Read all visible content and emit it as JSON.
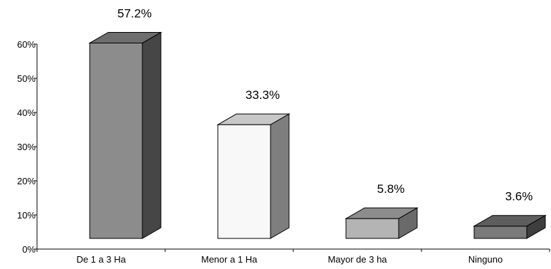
{
  "chart_data": {
    "type": "bar",
    "style": "3d-columns",
    "categories": [
      "De 1 a 3 Ha",
      "Menor a 1 Ha",
      "Mayor de 3 ha",
      "Ninguno"
    ],
    "values": [
      57.2,
      33.3,
      5.8,
      3.6
    ],
    "data_labels": [
      "57.2%",
      "33.3%",
      "5.8%",
      "3.6%"
    ],
    "ylim": [
      0,
      60
    ],
    "yticks": [
      0,
      10,
      20,
      30,
      40,
      50,
      60
    ],
    "ytick_labels": [
      "0%",
      "10%",
      "20%",
      "30%",
      "40%",
      "50%",
      "60%"
    ],
    "title": "",
    "xlabel": "",
    "ylabel": "",
    "grid": false,
    "legend": false,
    "colors": {
      "front": [
        "#8c8c8c",
        "#f8f8f8",
        "#b4b4b4",
        "#7a7a7a"
      ],
      "top": [
        "#6e6e6e",
        "#c8c8c8",
        "#8c8c8c",
        "#5e5e5e"
      ],
      "side": [
        "#464646",
        "#7e7e7e",
        "#6a6a6a",
        "#3e3e3e"
      ]
    }
  }
}
